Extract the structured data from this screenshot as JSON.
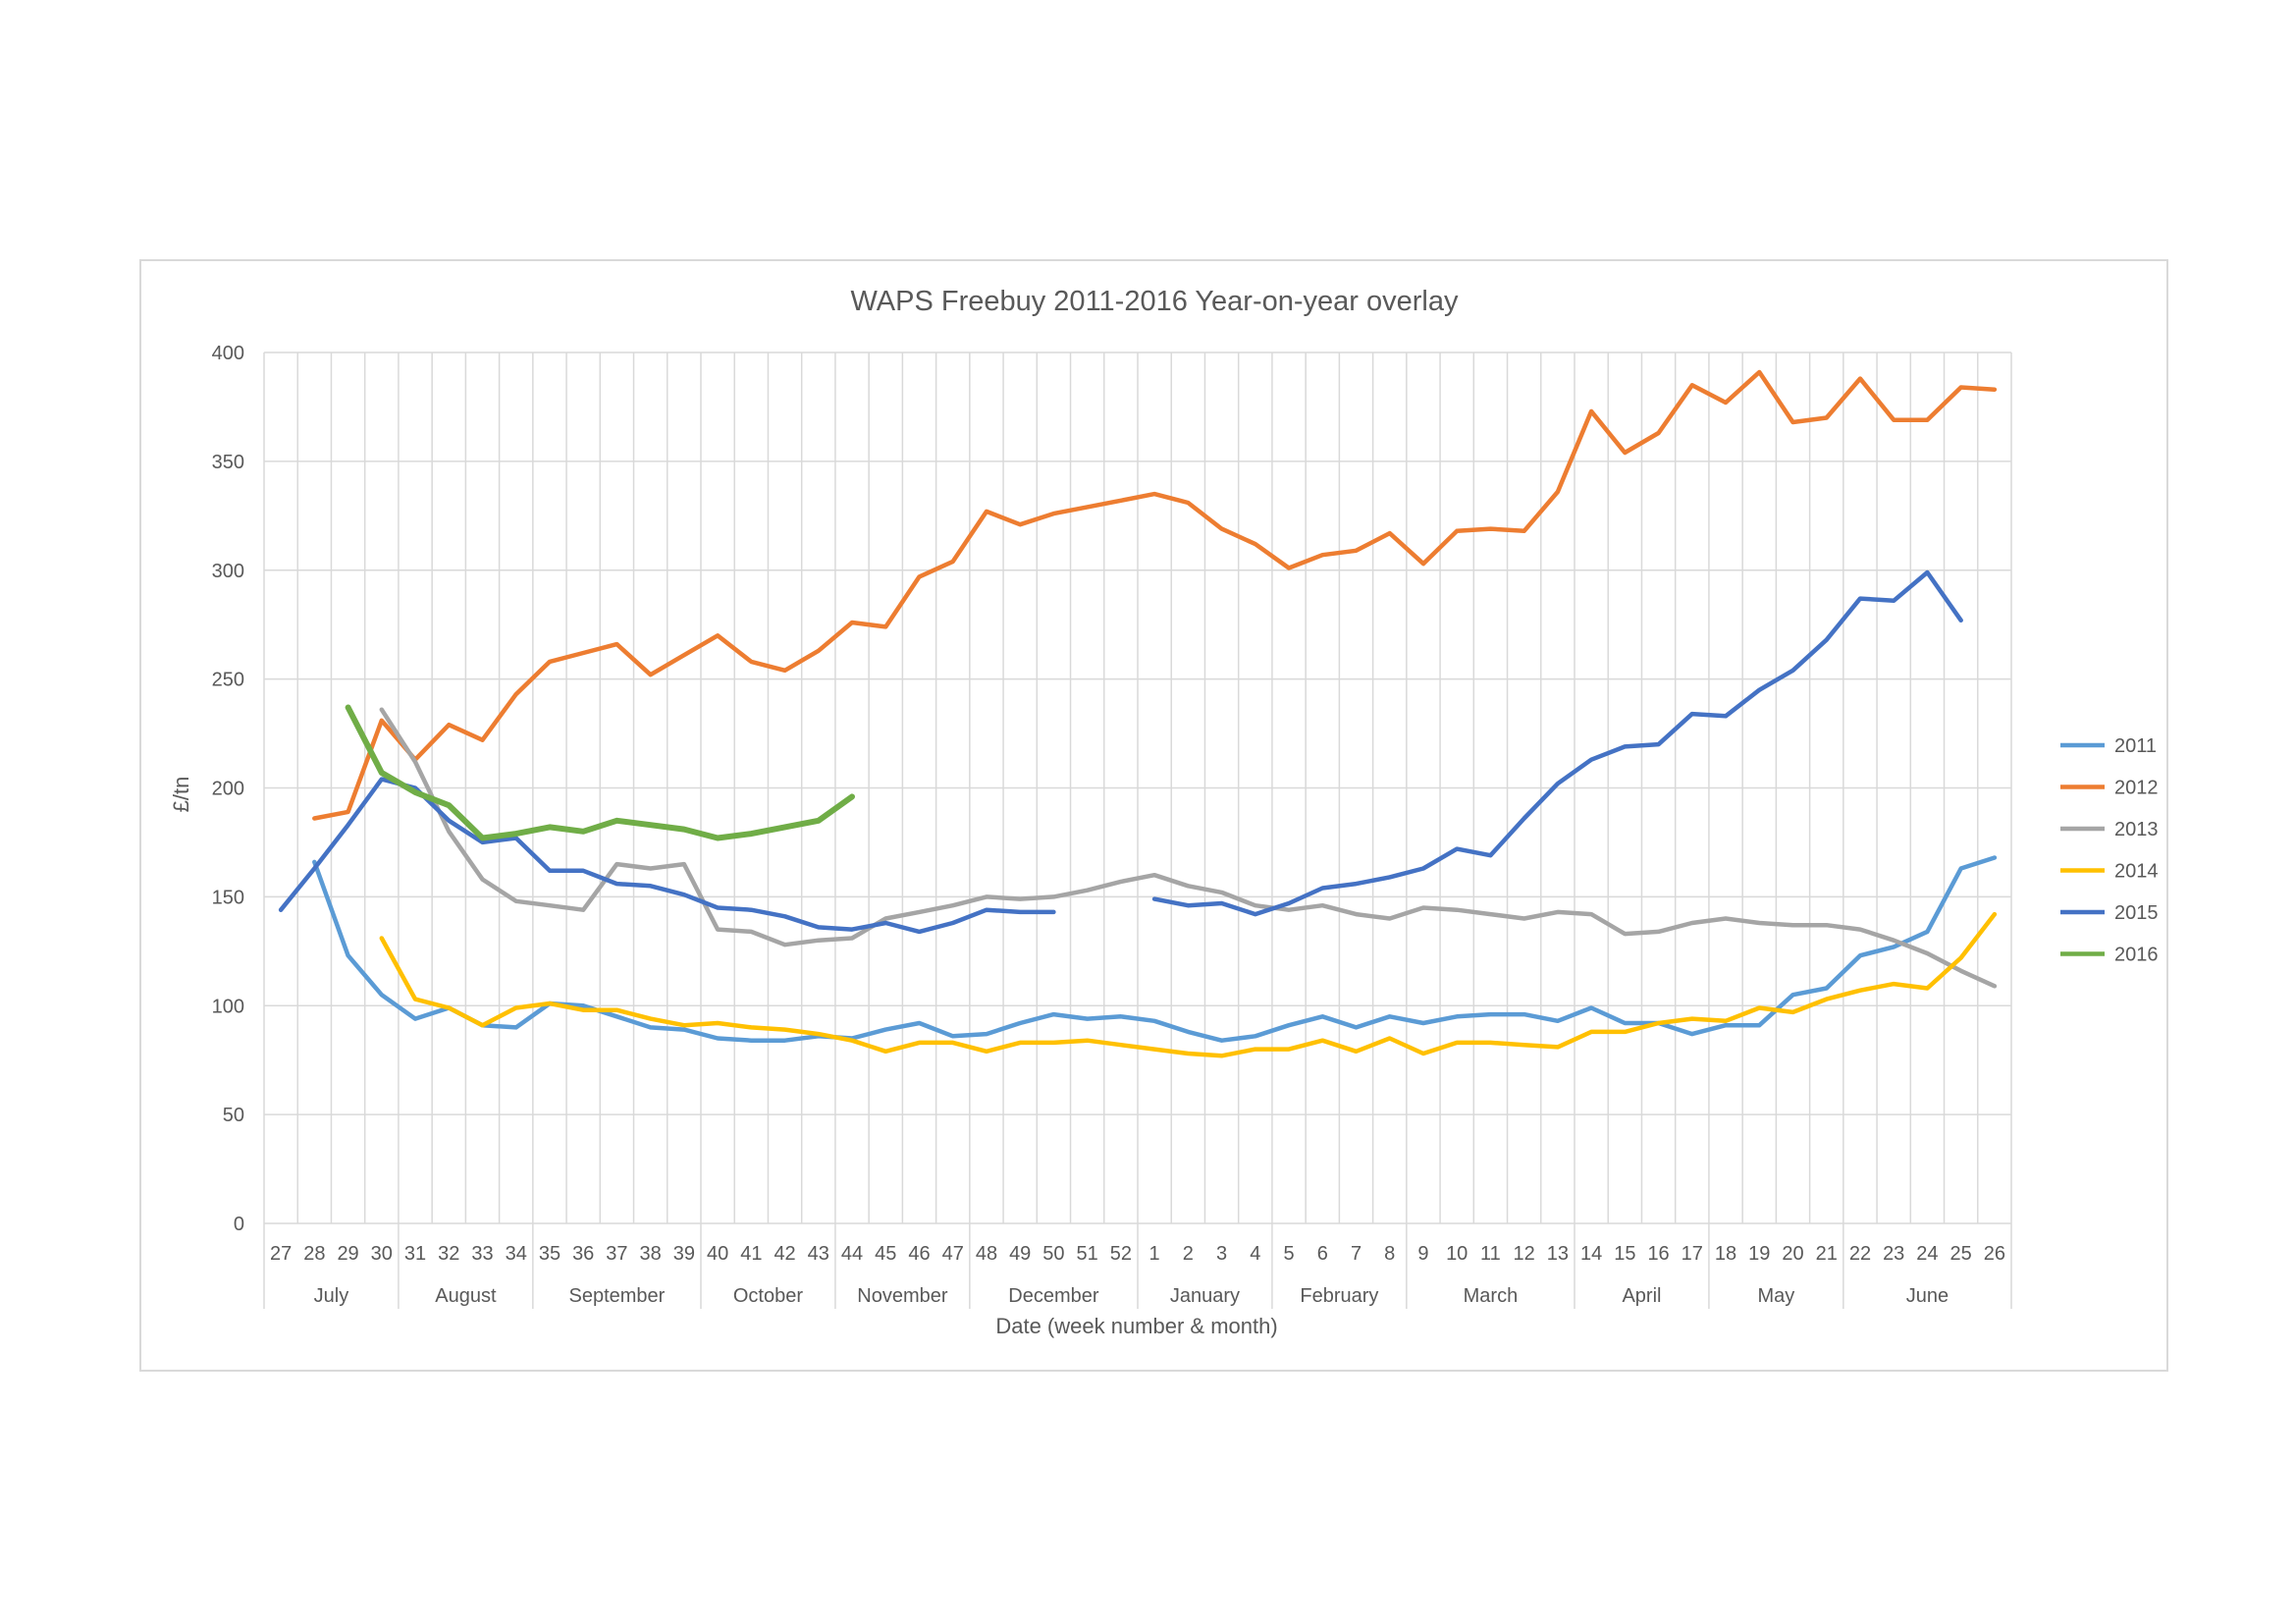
{
  "chart_data": {
    "type": "line",
    "title": "WAPS Freebuy 2011-2016 Year-on-year overlay",
    "xlabel": "Date (week number & month)",
    "ylabel": "£/tn",
    "ylim": [
      0,
      400
    ],
    "yticks": [
      0,
      50,
      100,
      150,
      200,
      250,
      300,
      350,
      400
    ],
    "grid": true,
    "legend_position": "right",
    "categories": [
      "27",
      "28",
      "29",
      "30",
      "31",
      "32",
      "33",
      "34",
      "35",
      "36",
      "37",
      "38",
      "39",
      "40",
      "41",
      "42",
      "43",
      "44",
      "45",
      "46",
      "47",
      "48",
      "49",
      "50",
      "51",
      "52",
      "1",
      "2",
      "3",
      "4",
      "5",
      "6",
      "7",
      "8",
      "9",
      "10",
      "11",
      "12",
      "13",
      "14",
      "15",
      "16",
      "17",
      "18",
      "19",
      "20",
      "21",
      "22",
      "23",
      "24",
      "25",
      "26"
    ],
    "month_groups": [
      {
        "label": "July",
        "start": 0,
        "end": 3
      },
      {
        "label": "August",
        "start": 4,
        "end": 7
      },
      {
        "label": "September",
        "start": 8,
        "end": 12
      },
      {
        "label": "October",
        "start": 13,
        "end": 16
      },
      {
        "label": "November",
        "start": 17,
        "end": 20
      },
      {
        "label": "December",
        "start": 21,
        "end": 25
      },
      {
        "label": "January",
        "start": 26,
        "end": 29
      },
      {
        "label": "February",
        "start": 30,
        "end": 33
      },
      {
        "label": "March",
        "start": 34,
        "end": 38
      },
      {
        "label": "April",
        "start": 39,
        "end": 42
      },
      {
        "label": "May",
        "start": 43,
        "end": 46
      },
      {
        "label": "June",
        "start": 47,
        "end": 51
      }
    ],
    "series": [
      {
        "name": "2011",
        "color": "#5B9BD5",
        "values": [
          null,
          166,
          123,
          105,
          94,
          99,
          91,
          90,
          101,
          100,
          95,
          90,
          89,
          85,
          84,
          84,
          86,
          85,
          89,
          92,
          86,
          87,
          92,
          96,
          94,
          95,
          93,
          88,
          84,
          86,
          91,
          95,
          90,
          95,
          92,
          95,
          96,
          96,
          93,
          99,
          92,
          92,
          87,
          91,
          91,
          105,
          108,
          123,
          127,
          134,
          163,
          168
        ]
      },
      {
        "name": "2012",
        "color": "#ED7D31",
        "values": [
          null,
          186,
          189,
          231,
          213,
          229,
          222,
          243,
          258,
          262,
          266,
          252,
          261,
          270,
          258,
          254,
          263,
          276,
          274,
          297,
          304,
          327,
          321,
          326,
          329,
          332,
          335,
          331,
          319,
          312,
          301,
          307,
          309,
          317,
          303,
          318,
          319,
          318,
          336,
          373,
          354,
          363,
          385,
          377,
          391,
          368,
          370,
          388,
          369,
          369,
          384,
          383
        ]
      },
      {
        "name": "2013",
        "color": "#A5A5A5",
        "values": [
          null,
          null,
          null,
          236,
          212,
          180,
          158,
          148,
          146,
          144,
          165,
          163,
          165,
          135,
          134,
          128,
          130,
          131,
          140,
          143,
          146,
          150,
          149,
          150,
          153,
          157,
          160,
          155,
          152,
          146,
          144,
          146,
          142,
          140,
          145,
          144,
          142,
          140,
          143,
          142,
          133,
          134,
          138,
          140,
          138,
          137,
          137,
          135,
          130,
          124,
          116,
          109
        ]
      },
      {
        "name": "2014",
        "color": "#FFC000",
        "values": [
          null,
          null,
          null,
          131,
          103,
          99,
          91,
          99,
          101,
          98,
          98,
          94,
          91,
          92,
          90,
          89,
          87,
          84,
          79,
          83,
          83,
          79,
          83,
          83,
          84,
          82,
          80,
          78,
          77,
          80,
          80,
          84,
          79,
          85,
          78,
          83,
          83,
          82,
          81,
          88,
          88,
          92,
          94,
          93,
          99,
          97,
          103,
          107,
          110,
          108,
          122,
          142
        ]
      },
      {
        "name": "2015",
        "color": "#4472C4",
        "values": [
          144,
          163,
          183,
          204,
          200,
          185,
          175,
          177,
          162,
          162,
          156,
          155,
          151,
          145,
          144,
          141,
          136,
          135,
          138,
          134,
          138,
          144,
          143,
          143,
          null,
          null,
          149,
          146,
          147,
          142,
          147,
          154,
          156,
          159,
          163,
          172,
          169,
          186,
          202,
          213,
          219,
          220,
          234,
          233,
          245,
          254,
          268,
          287,
          286,
          299,
          277,
          null
        ]
      },
      {
        "name": "2016",
        "color": "#70AD47",
        "values": [
          null,
          null,
          237,
          207,
          198,
          192,
          177,
          179,
          182,
          180,
          185,
          183,
          181,
          177,
          179,
          182,
          185,
          196,
          null,
          null,
          null,
          null,
          null,
          null,
          null,
          null,
          null,
          null,
          null,
          null,
          null,
          null,
          null,
          null,
          null,
          null,
          null,
          null,
          null,
          null,
          null,
          null,
          null,
          null,
          null,
          null,
          null,
          null,
          null,
          null,
          null,
          null
        ]
      }
    ]
  }
}
